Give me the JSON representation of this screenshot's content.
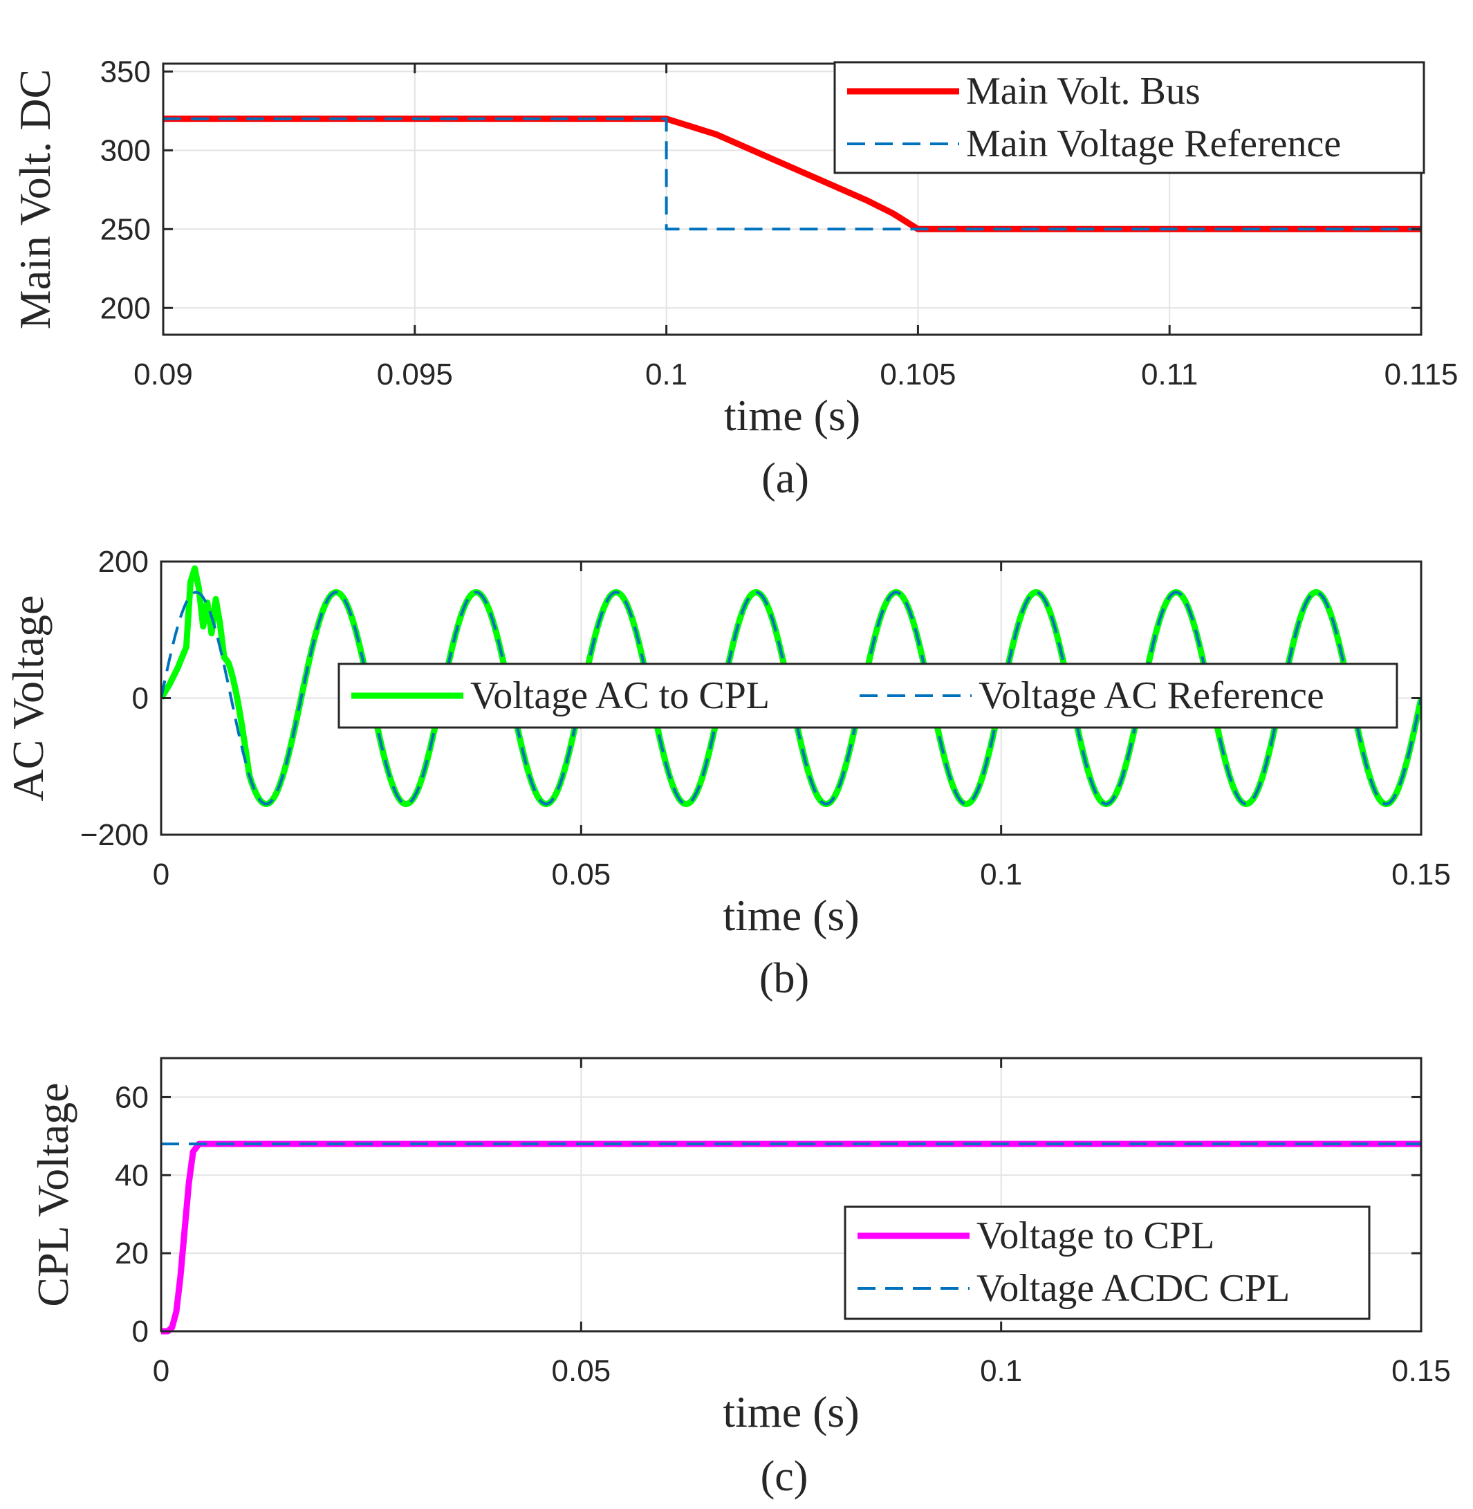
{
  "chart_data": [
    {
      "type": "line",
      "caption": "(a)",
      "xlabel": "time (s)",
      "ylabel": "Main Volt. DC",
      "xlim": [
        0.09,
        0.115
      ],
      "ylim": [
        183,
        355
      ],
      "xticks": [
        0.09,
        0.095,
        0.1,
        0.105,
        0.11,
        0.115
      ],
      "xtick_labels": [
        "0.09",
        "0.095",
        "0.1",
        "0.105",
        "0.11",
        "0.115"
      ],
      "yticks": [
        200,
        250,
        300,
        350
      ],
      "ytick_labels": [
        "200",
        "250",
        "300",
        "350"
      ],
      "grid": true,
      "legend_position": "top-right",
      "series": [
        {
          "name": "Main Volt. Bus",
          "style": "solid",
          "color": "#ff0000",
          "x": [
            0.09,
            0.1,
            0.101,
            0.102,
            0.103,
            0.104,
            0.1045,
            0.105,
            0.115
          ],
          "y": [
            320,
            320,
            310,
            296,
            282,
            268,
            260,
            250,
            250
          ]
        },
        {
          "name": "Main Voltage Reference",
          "style": "dashed",
          "color": "#0072bd",
          "x": [
            0.09,
            0.1,
            0.1,
            0.115
          ],
          "y": [
            320,
            320,
            250,
            250
          ]
        }
      ]
    },
    {
      "type": "line",
      "caption": "(b)",
      "xlabel": "time (s)",
      "ylabel": "AC Voltage",
      "xlim": [
        0,
        0.15
      ],
      "ylim": [
        -200,
        200
      ],
      "xticks": [
        0,
        0.05,
        0.1,
        0.15
      ],
      "xtick_labels": [
        "0",
        "0.05",
        "0.1",
        "0.15"
      ],
      "yticks": [
        -200,
        0,
        200
      ],
      "ytick_labels": [
        "−200",
        "0",
        "200"
      ],
      "grid": true,
      "legend_position": "center-right",
      "series": [
        {
          "name": "Voltage AC to CPL",
          "style": "solid",
          "color": "#00ff00",
          "amplitude": 155,
          "frequency_hz": 60,
          "transient_x": [
            0,
            0.001,
            0.002,
            0.003,
            0.0035,
            0.004,
            0.0045,
            0.005,
            0.0055,
            0.006,
            0.0065,
            0.007,
            0.0075,
            0.008
          ],
          "transient_y": [
            0,
            20,
            45,
            75,
            170,
            190,
            160,
            105,
            140,
            95,
            145,
            110,
            60,
            52
          ]
        },
        {
          "name": "Voltage AC Reference",
          "style": "dashed",
          "color": "#0072bd",
          "amplitude": 155,
          "frequency_hz": 60
        }
      ]
    },
    {
      "type": "line",
      "caption": "(c)",
      "xlabel": "time (s)",
      "ylabel": "CPL Voltage",
      "xlim": [
        0,
        0.15
      ],
      "ylim": [
        0,
        70
      ],
      "xticks": [
        0,
        0.05,
        0.1,
        0.15
      ],
      "xtick_labels": [
        "0",
        "0.05",
        "0.1",
        "0.15"
      ],
      "yticks": [
        0,
        20,
        40,
        60
      ],
      "ytick_labels": [
        "0",
        "20",
        "40",
        "60"
      ],
      "grid": true,
      "legend_position": "bottom-right",
      "series": [
        {
          "name": "Voltage to CPL",
          "style": "solid",
          "color": "#ff00ff",
          "x": [
            0,
            0.0008,
            0.0013,
            0.0018,
            0.0023,
            0.0028,
            0.0033,
            0.0038,
            0.0045,
            0.15
          ],
          "y": [
            0,
            0,
            1,
            5,
            14,
            26,
            38,
            46,
            48,
            48
          ]
        },
        {
          "name": "Voltage ACDC CPL",
          "style": "dashed",
          "color": "#0072bd",
          "x": [
            0,
            0.15
          ],
          "y": [
            48,
            48
          ]
        }
      ]
    }
  ]
}
